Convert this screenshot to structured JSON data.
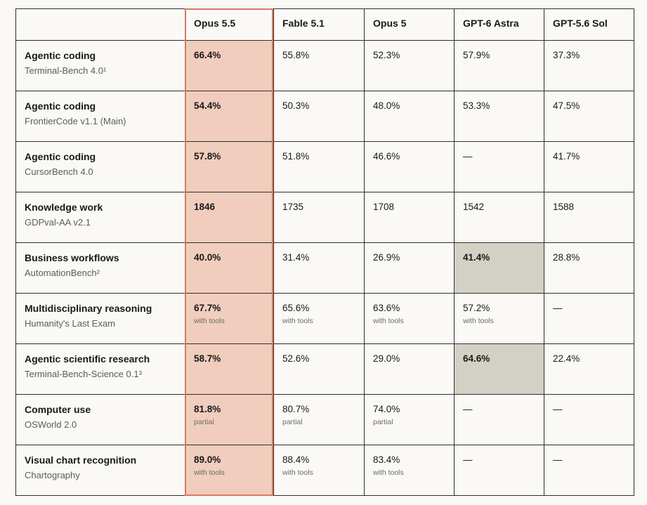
{
  "columns": [
    "",
    "Opus 5.5",
    "Fable 5.1",
    "Opus 5",
    "GPT-6 Astra",
    "GPT-5.6 Sol"
  ],
  "rows": [
    {
      "name": "Agentic coding",
      "benchmark": "Terminal-Bench 4.0¹",
      "cells": [
        {
          "v": "66.4%",
          "note": ""
        },
        {
          "v": "55.8%",
          "note": ""
        },
        {
          "v": "52.3%",
          "note": ""
        },
        {
          "v": "57.9%",
          "note": ""
        },
        {
          "v": "37.3%",
          "note": ""
        }
      ]
    },
    {
      "name": "Agentic coding",
      "benchmark": "FrontierCode v1.1 (Main)",
      "cells": [
        {
          "v": "54.4%",
          "note": ""
        },
        {
          "v": "50.3%",
          "note": ""
        },
        {
          "v": "48.0%",
          "note": ""
        },
        {
          "v": "53.3%",
          "note": ""
        },
        {
          "v": "47.5%",
          "note": ""
        }
      ]
    },
    {
      "name": "Agentic coding",
      "benchmark": "CursorBench 4.0",
      "cells": [
        {
          "v": "57.8%",
          "note": ""
        },
        {
          "v": "51.8%",
          "note": ""
        },
        {
          "v": "46.6%",
          "note": ""
        },
        {
          "v": "—",
          "note": ""
        },
        {
          "v": "41.7%",
          "note": ""
        }
      ]
    },
    {
      "name": "Knowledge work",
      "benchmark": "GDPval-AA v2.1",
      "cells": [
        {
          "v": "1846",
          "note": ""
        },
        {
          "v": "1735",
          "note": ""
        },
        {
          "v": "1708",
          "note": ""
        },
        {
          "v": "1542",
          "note": ""
        },
        {
          "v": "1588",
          "note": ""
        }
      ]
    },
    {
      "name": "Business workflows",
      "benchmark": "AutomationBench²",
      "cells": [
        {
          "v": "40.0%",
          "note": ""
        },
        {
          "v": "31.4%",
          "note": ""
        },
        {
          "v": "26.9%",
          "note": ""
        },
        {
          "v": "41.4%",
          "note": "",
          "best": true
        },
        {
          "v": "28.8%",
          "note": ""
        }
      ]
    },
    {
      "name": "Multidisciplinary reasoning",
      "benchmark": "Humanity's Last Exam",
      "cells": [
        {
          "v": "67.7%",
          "note": "with tools"
        },
        {
          "v": "65.6%",
          "note": "with tools"
        },
        {
          "v": "63.6%",
          "note": "with tools"
        },
        {
          "v": "57.2%",
          "note": "with tools"
        },
        {
          "v": "—",
          "note": ""
        }
      ]
    },
    {
      "name": "Agentic scientific research",
      "benchmark": "Terminal-Bench-Science 0.1³",
      "cells": [
        {
          "v": "58.7%",
          "note": ""
        },
        {
          "v": "52.6%",
          "note": ""
        },
        {
          "v": "29.0%",
          "note": ""
        },
        {
          "v": "64.6%",
          "note": "",
          "best": true
        },
        {
          "v": "22.4%",
          "note": ""
        }
      ]
    },
    {
      "name": "Computer use",
      "benchmark": "OSWorld 2.0",
      "cells": [
        {
          "v": "81.8%",
          "note": "partial"
        },
        {
          "v": "80.7%",
          "note": "partial"
        },
        {
          "v": "74.0%",
          "note": "partial"
        },
        {
          "v": "—",
          "note": ""
        },
        {
          "v": "—",
          "note": ""
        }
      ]
    },
    {
      "name": "Visual chart recognition",
      "benchmark": "Chartography",
      "cells": [
        {
          "v": "89.0%",
          "note": "with tools"
        },
        {
          "v": "88.4%",
          "note": "with tools"
        },
        {
          "v": "83.4%",
          "note": "with tools"
        },
        {
          "v": "—",
          "note": ""
        },
        {
          "v": "—",
          "note": ""
        }
      ]
    }
  ],
  "colors": {
    "highlight_column_fill": "#f0cdbc",
    "highlight_column_border": "#d97a5c",
    "best_cell_fill": "#d3d1c6"
  }
}
